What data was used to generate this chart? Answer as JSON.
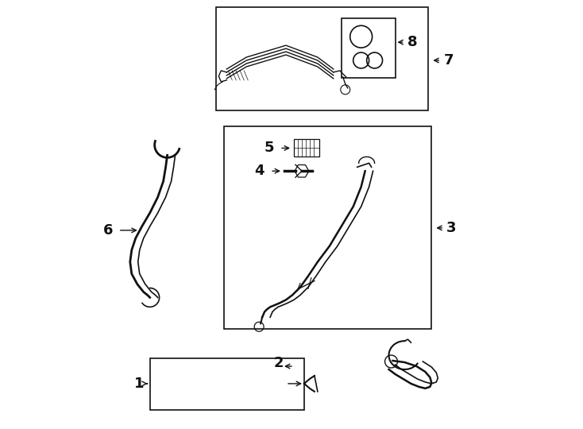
{
  "background_color": "#ffffff",
  "fig_width": 7.34,
  "fig_height": 5.4,
  "dpi": 100,
  "dark": "#111111"
}
